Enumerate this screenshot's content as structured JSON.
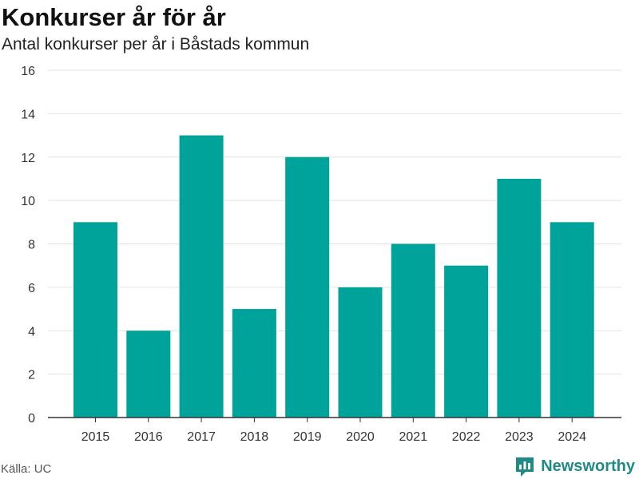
{
  "chart_data": {
    "type": "bar",
    "title": "Konkurser år för år",
    "subtitle": "Antal konkurser per år i Båstads kommun",
    "categories": [
      "2015",
      "2016",
      "2017",
      "2018",
      "2019",
      "2020",
      "2021",
      "2022",
      "2023",
      "2024"
    ],
    "values": [
      9,
      4,
      13,
      5,
      12,
      6,
      8,
      7,
      11,
      9
    ],
    "ylim": [
      0,
      16
    ],
    "yticks": [
      "0",
      "2",
      "4",
      "6",
      "8",
      "10",
      "12",
      "14",
      "16"
    ],
    "xlabel": "",
    "ylabel": "",
    "grid": true,
    "bar_color": "#00a39a"
  },
  "footer": {
    "source": "Källa: UC",
    "brand": "Newsworthy",
    "brand_color": "#1f8a86"
  }
}
